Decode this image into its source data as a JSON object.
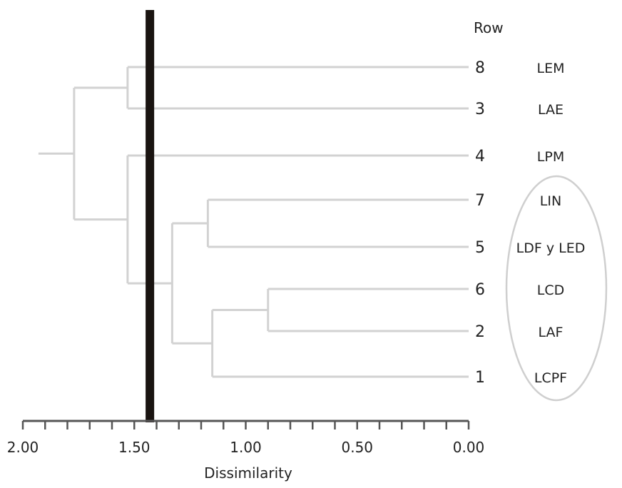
{
  "chart_data": {
    "type": "dendrogram",
    "title": "",
    "xlabel": "Dissimilarity",
    "ylabel": "",
    "xlim": [
      2.0,
      0.0
    ],
    "x_ticks": [
      {
        "value": 2.0,
        "label": "2.00"
      },
      {
        "value": 1.5,
        "label": "1.50"
      },
      {
        "value": 1.0,
        "label": "1.00"
      },
      {
        "value": 0.5,
        "label": "0.50"
      },
      {
        "value": 0.0,
        "label": "0.00"
      }
    ],
    "minor_tick_step": 0.1,
    "row_header": "Row",
    "leaves": [
      {
        "row": "8",
        "name": "LEM"
      },
      {
        "row": "3",
        "name": "LAE"
      },
      {
        "row": "4",
        "name": "LPM"
      },
      {
        "row": "7",
        "name": "LIN"
      },
      {
        "row": "5",
        "name": "LDF y LED"
      },
      {
        "row": "6",
        "name": "LCD"
      },
      {
        "row": "2",
        "name": "LAF"
      },
      {
        "row": "1",
        "name": "LCPF"
      }
    ],
    "merges": [
      {
        "id": "m62",
        "left": "6",
        "right": "2",
        "height": 0.9
      },
      {
        "id": "m621",
        "left": "m62",
        "right": "1",
        "height": 1.15
      },
      {
        "id": "m75",
        "left": "7",
        "right": "5",
        "height": 1.17
      },
      {
        "id": "m75621",
        "left": "m75",
        "right": "m621",
        "height": 1.33
      },
      {
        "id": "m4rest",
        "left": "4",
        "right": "m75621",
        "height": 1.53
      },
      {
        "id": "m83",
        "left": "8",
        "right": "3",
        "height": 1.53
      },
      {
        "id": "root",
        "left": "m83",
        "right": "m4rest",
        "height": 1.77
      }
    ],
    "root_stub": 1.93,
    "cut_line": 1.43,
    "highlighted_group": [
      "7",
      "5",
      "6",
      "2",
      "1"
    ],
    "colors": {
      "branch": "#d2d2d2",
      "cut": "#1a1411",
      "axis": "#555555",
      "ellipse": "#cfcfcf",
      "text": "#222222"
    }
  }
}
